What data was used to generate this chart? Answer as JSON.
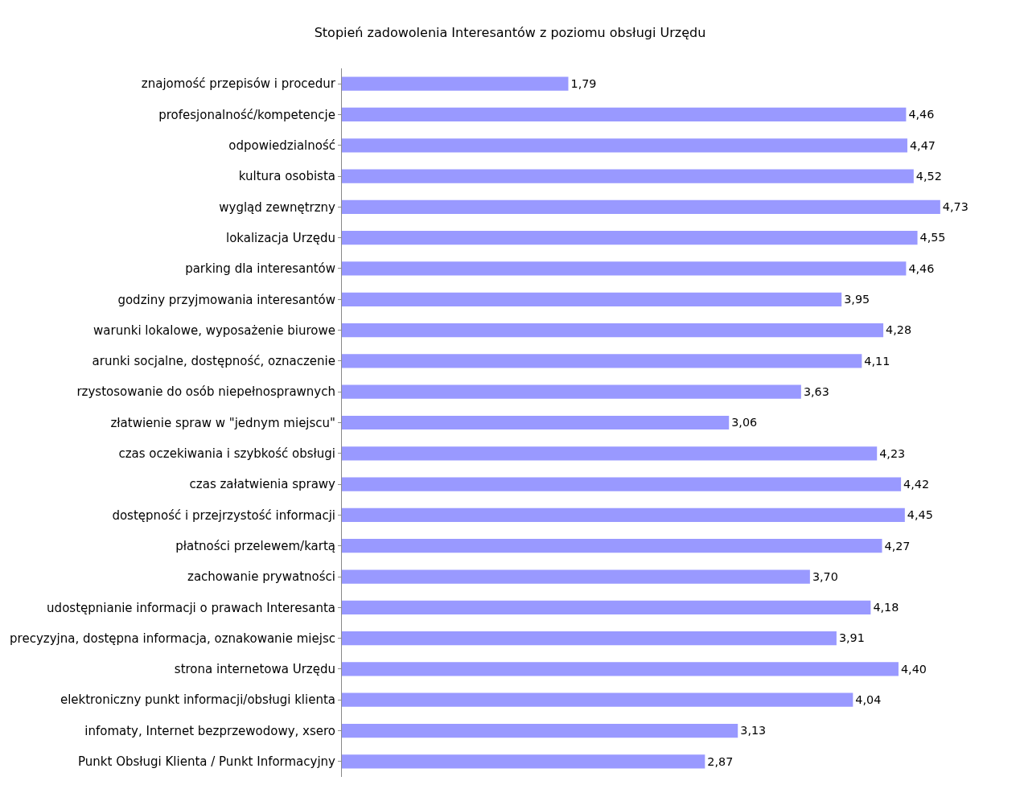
{
  "chart_data": {
    "type": "bar",
    "orientation": "horizontal",
    "title": "Stopień zadowolenia Interesantów z poziomu obsługi Urzędu",
    "categories": [
      "znajomość przepisów i procedur",
      "profesjonalność/kompetencje",
      "odpowiedzialność",
      "kultura osobista",
      "wygląd zewnętrzny",
      "lokalizacja Urzędu",
      "parking dla interesantów",
      "godziny przyjmowania interesantów",
      "warunki lokalowe, wyposażenie biurowe",
      "arunki socjalne, dostępność, oznaczenie",
      "rzystosowanie do osób niepełnosprawnych",
      "złatwienie spraw w \"jednym miejscu\"",
      "czas oczekiwania i szybkość obsługi",
      "czas załatwienia sprawy",
      "dostępność i przejrzystość informacji",
      "płatności przelewem/kartą",
      "zachowanie prywatności",
      "udostępnianie informacji o prawach Interesanta",
      "precyzyjna, dostępna informacja, oznakowanie miejsc",
      "strona internetowa Urzędu",
      "elektroniczny punkt informacji/obsługi klienta",
      "infomaty, Internet bezprzewodowy, xsero",
      "Punkt Obsługi Klienta / Punkt Informacyjny"
    ],
    "values": [
      1.79,
      4.46,
      4.47,
      4.52,
      4.73,
      4.55,
      4.46,
      3.95,
      4.28,
      4.11,
      3.63,
      3.06,
      4.23,
      4.42,
      4.45,
      4.27,
      3.7,
      4.18,
      3.91,
      4.4,
      4.04,
      3.13,
      2.87
    ],
    "value_labels": [
      "1,79",
      "4,46",
      "4,47",
      "4,52",
      "4,73",
      "4,55",
      "4,46",
      "3,95",
      "4,28",
      "4,11",
      "3,63",
      "3,06",
      "4,23",
      "4,42",
      "4,45",
      "4,27",
      "3,70",
      "4,18",
      "3,91",
      "4,40",
      "4,04",
      "3,13",
      "2,87"
    ],
    "color": "#9999ff",
    "tick_labels": "y",
    "grid": false
  }
}
